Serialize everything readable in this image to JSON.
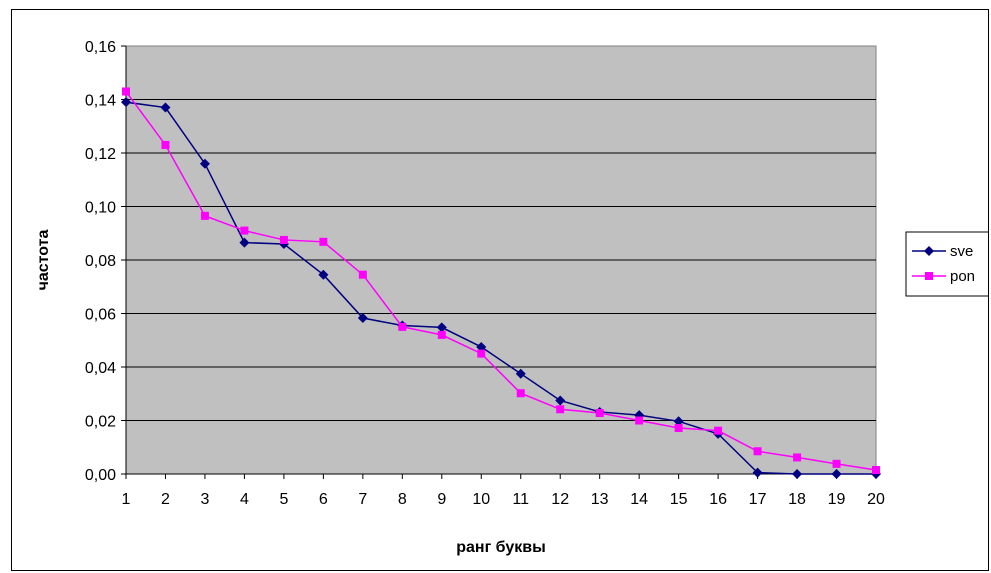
{
  "chart_data": {
    "type": "line",
    "title": "",
    "xlabel": "ранг буквы",
    "ylabel": "частота",
    "x": [
      1,
      2,
      3,
      4,
      5,
      6,
      7,
      8,
      9,
      10,
      11,
      12,
      13,
      14,
      15,
      16,
      17,
      18,
      19,
      20
    ],
    "ylim": [
      0,
      0.16
    ],
    "yticks": [
      "0,00",
      "0,02",
      "0,04",
      "0,06",
      "0,08",
      "0,10",
      "0,12",
      "0,14",
      "0,16"
    ],
    "grid": "horizontal",
    "legend_position": "right",
    "plot_background": "#c0c0c0",
    "series": [
      {
        "name": "sve",
        "color": "#000080",
        "marker": "diamond",
        "values": [
          0.139,
          0.137,
          0.116,
          0.0865,
          0.086,
          0.0745,
          0.0583,
          0.0555,
          0.0548,
          0.0475,
          0.0375,
          0.0275,
          0.0232,
          0.022,
          0.0197,
          0.015,
          0.0005,
          0.0,
          0.0,
          0.0
        ]
      },
      {
        "name": "pon",
        "color": "#ff00ff",
        "marker": "square",
        "values": [
          0.143,
          0.123,
          0.0965,
          0.091,
          0.0875,
          0.0868,
          0.0745,
          0.055,
          0.052,
          0.045,
          0.0302,
          0.0242,
          0.0228,
          0.02,
          0.0172,
          0.0162,
          0.0085,
          0.0062,
          0.0038,
          0.0015
        ]
      }
    ]
  }
}
